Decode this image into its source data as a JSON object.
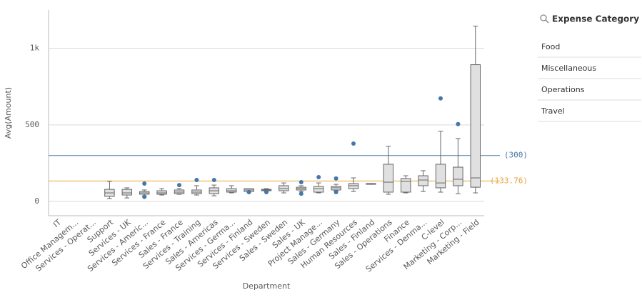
{
  "chart_data": {
    "type": "boxplot",
    "y_label": "Avg(Amount)",
    "x_label": "Department",
    "categories": [
      "IT",
      "Office Managem...",
      "Services - Operat...",
      "Support",
      "Services - UK",
      "Services - Americ...",
      "Services - France",
      "Sales - France",
      "Services - Training",
      "Sales - Americas",
      "Services - Germa...",
      "Services - Finland",
      "Services - Sweden",
      "Sales - Sweden",
      "Sales - UK",
      "Project Manage...",
      "Sales - Germany",
      "Human Resources",
      "Sales - Finland",
      "Sales - Operations",
      "Finance",
      "Services - Denma...",
      "C-level",
      "Marketing - Corp...",
      "Marketing - Field"
    ],
    "whisker_low": [
      null,
      null,
      null,
      19,
      23,
      37,
      42,
      47,
      42,
      37,
      56,
      61,
      65,
      56,
      65,
      56,
      70,
      65,
      112,
      47,
      56,
      65,
      61,
      51,
      56
    ],
    "q1": [
      null,
      null,
      null,
      33,
      42,
      47,
      47,
      51,
      51,
      51,
      61,
      65,
      70,
      70,
      75,
      61,
      75,
      84,
      112,
      61,
      61,
      103,
      89,
      103,
      93
    ],
    "median": [
      null,
      null,
      null,
      56,
      56,
      56,
      56,
      61,
      61,
      70,
      70,
      75,
      75,
      84,
      84,
      84,
      89,
      103,
      117,
      126,
      131,
      140,
      121,
      145,
      154
    ],
    "q3": [
      null,
      null,
      null,
      79,
      79,
      65,
      70,
      75,
      75,
      89,
      84,
      84,
      79,
      103,
      93,
      98,
      98,
      117,
      117,
      243,
      150,
      168,
      243,
      224,
      893
    ],
    "whisker_high": [
      null,
      null,
      null,
      131,
      89,
      75,
      84,
      84,
      103,
      107,
      103,
      84,
      84,
      121,
      103,
      121,
      112,
      154,
      117,
      360,
      168,
      201,
      458,
      411,
      1145
    ],
    "outliers": [
      [],
      [],
      [],
      [],
      [],
      [
        117,
        30
      ],
      [],
      [
        107
      ],
      [
        140
      ],
      [
        140
      ],
      [],
      [
        61
      ],
      [
        61
      ],
      [],
      [
        126,
        51
      ],
      [
        159
      ],
      [
        150,
        61
      ],
      [
        378
      ],
      [],
      [],
      [],
      [],
      [
        673
      ],
      [
        505
      ],
      []
    ],
    "box_color": "#e0e0e0",
    "line_color": "#666666",
    "outlier_color": "#4477aa",
    "reference_lines": [
      {
        "value": 300,
        "label": "(300)",
        "color": "#4a7ba6"
      },
      {
        "value": 133.76,
        "label": "(133.76)",
        "color": "#e8a33a"
      }
    ],
    "ylim": [
      -93,
      1250
    ],
    "yticks": [
      0,
      500,
      {
        "value": 1000,
        "label": "1k"
      }
    ],
    "grid": true
  },
  "filter_panel": {
    "title": "Expense Category",
    "items": [
      "Food",
      "Miscellaneous",
      "Operations",
      "Travel"
    ]
  }
}
